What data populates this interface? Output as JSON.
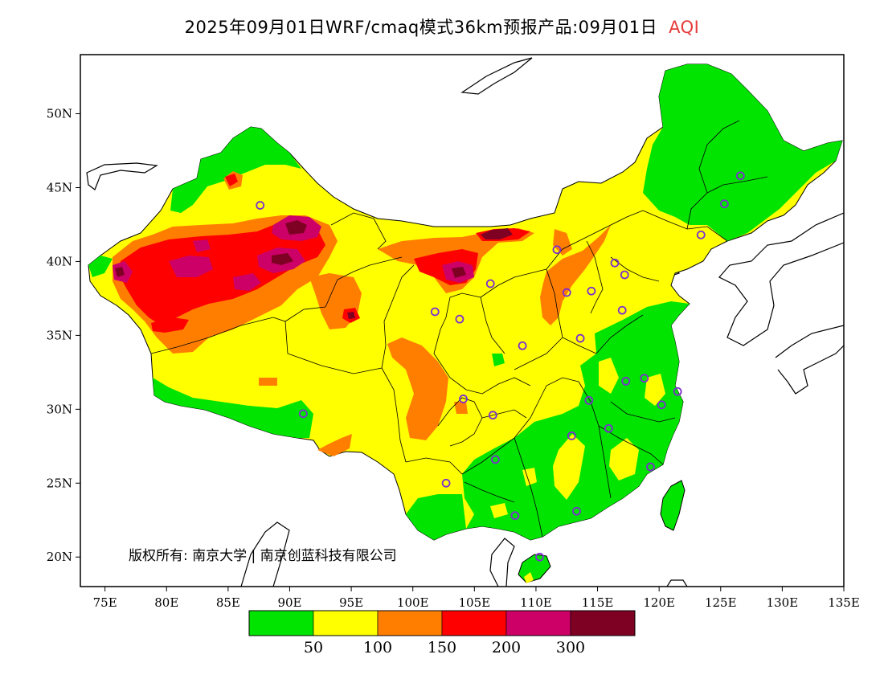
{
  "title": "2025年09月01日WRF/cmaq模式36km预报产品:09月01日",
  "title_variable": "AQI",
  "colors": {
    "aqi_label": "#e53a3a",
    "green": "#00e400",
    "yellow": "#ffff00",
    "orange": "#ff7e00",
    "red": "#ff0000",
    "purple": "#cc0066",
    "maroon": "#7e0023",
    "station_marker": "#7d2ed0"
  },
  "map": {
    "lon_ticks": [
      "75E",
      "80E",
      "85E",
      "90E",
      "95E",
      "100E",
      "105E",
      "110E",
      "115E",
      "120E",
      "125E",
      "130E",
      "135E"
    ],
    "lat_ticks": [
      "20N",
      "25N",
      "30N",
      "35N",
      "40N",
      "45N",
      "50N"
    ],
    "lon_range": [
      73,
      135
    ],
    "lat_range": [
      18,
      54
    ],
    "copyright": "版权所有: 南京大学 | 南京创蓝科技有限公司"
  },
  "legend": {
    "bins": [
      "green",
      "yellow",
      "orange",
      "red",
      "purple",
      "maroon"
    ],
    "labels": [
      "50",
      "100",
      "150",
      "200",
      "300"
    ]
  },
  "stations": [
    [
      87.6,
      43.8
    ],
    [
      91.1,
      29.7
    ],
    [
      101.8,
      36.6
    ],
    [
      103.8,
      36.1
    ],
    [
      106.3,
      38.5
    ],
    [
      111.7,
      40.8
    ],
    [
      112.5,
      37.9
    ],
    [
      114.5,
      38.0
    ],
    [
      116.4,
      39.9
    ],
    [
      117.2,
      39.1
    ],
    [
      117.0,
      36.7
    ],
    [
      113.6,
      34.8
    ],
    [
      108.9,
      34.3
    ],
    [
      104.1,
      30.7
    ],
    [
      106.5,
      29.6
    ],
    [
      114.3,
      30.6
    ],
    [
      112.9,
      28.2
    ],
    [
      115.9,
      28.7
    ],
    [
      117.3,
      31.9
    ],
    [
      118.8,
      32.1
    ],
    [
      120.2,
      30.3
    ],
    [
      121.5,
      31.2
    ],
    [
      119.3,
      26.1
    ],
    [
      113.3,
      23.1
    ],
    [
      108.3,
      22.8
    ],
    [
      110.3,
      20.0
    ],
    [
      106.7,
      26.6
    ],
    [
      102.7,
      25.0
    ],
    [
      123.4,
      41.8
    ],
    [
      125.3,
      43.9
    ],
    [
      126.6,
      45.8
    ]
  ]
}
